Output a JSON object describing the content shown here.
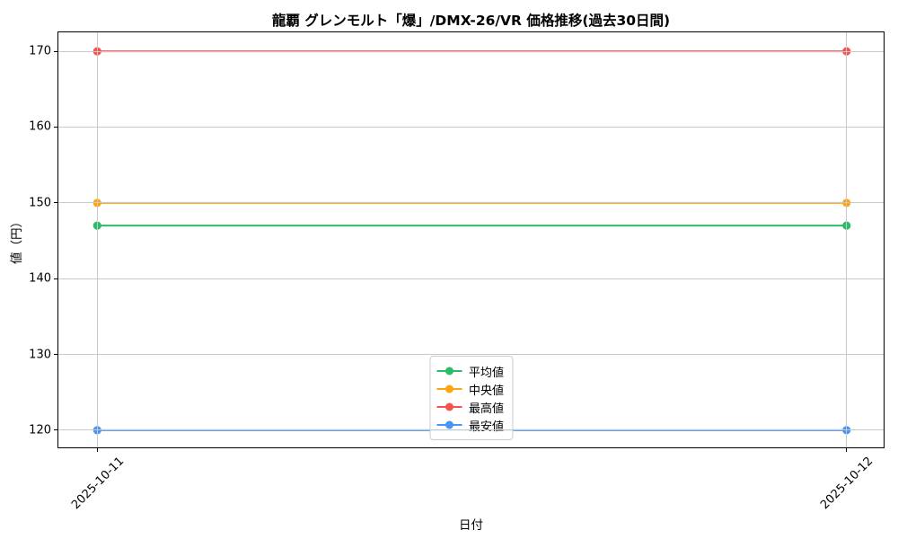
{
  "chart_data": {
    "type": "line",
    "title": "龍覇 グレンモルト「爆」/DMX-26/VR 価格推移(過去30日間)",
    "xlabel": "日付",
    "ylabel": "値（円）",
    "x": [
      "2025-10-11",
      "2025-10-12"
    ],
    "series": [
      {
        "name": "平均値",
        "color": "#2bbc68",
        "values": [
          147,
          147
        ]
      },
      {
        "name": "中央値",
        "color": "#ffa40d",
        "values": [
          150,
          150
        ]
      },
      {
        "name": "最高値",
        "color": "#f6524e",
        "values": [
          170,
          170
        ]
      },
      {
        "name": "最安値",
        "color": "#4795f6",
        "values": [
          120,
          120
        ]
      }
    ],
    "yticks": [
      120,
      130,
      140,
      150,
      160,
      170
    ],
    "ylim": [
      117.5,
      172.5
    ],
    "x_margin_frac": 0.047,
    "grid": true,
    "legend_position": "lower center",
    "colors": {
      "grid": "#c8c8c8",
      "spine": "#000000",
      "background": "#ffffff"
    }
  }
}
